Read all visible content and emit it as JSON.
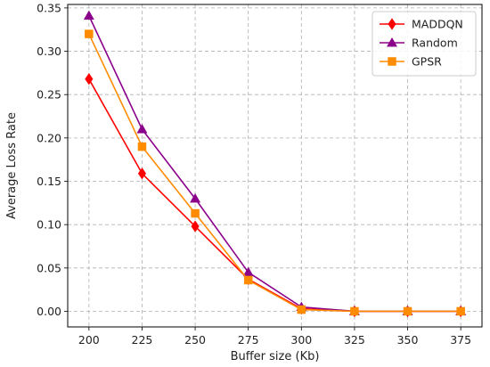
{
  "chart_data": {
    "type": "line",
    "title": "",
    "xlabel": "Buffer size (Kb)",
    "ylabel": "Average Loss Rate",
    "x": [
      200,
      225,
      250,
      275,
      300,
      325,
      350,
      375
    ],
    "xlim": [
      190,
      385
    ],
    "ylim": [
      -0.018,
      0.354
    ],
    "xticks": [
      200,
      225,
      250,
      275,
      300,
      325,
      350,
      375
    ],
    "yticks": [
      0.0,
      0.05,
      0.1,
      0.15,
      0.2,
      0.25,
      0.3,
      0.35
    ],
    "ytick_labels": [
      "0.00",
      "0.05",
      "0.10",
      "0.15",
      "0.20",
      "0.25",
      "0.30",
      "0.35"
    ],
    "grid": true,
    "legend_position": "top-right",
    "series": [
      {
        "name": "MADDQN",
        "color": "#ff0000",
        "marker": "diamond",
        "values": [
          0.268,
          0.159,
          0.098,
          0.037,
          0.003,
          0.0,
          0.0,
          0.0
        ]
      },
      {
        "name": "Random",
        "color": "#8b008b",
        "marker": "triangle",
        "values": [
          0.341,
          0.21,
          0.13,
          0.045,
          0.005,
          0.0,
          0.0,
          0.0
        ]
      },
      {
        "name": "GPSR",
        "color": "#ff8c00",
        "marker": "square",
        "values": [
          0.32,
          0.19,
          0.113,
          0.036,
          0.002,
          0.0,
          0.0,
          0.0
        ]
      }
    ]
  }
}
